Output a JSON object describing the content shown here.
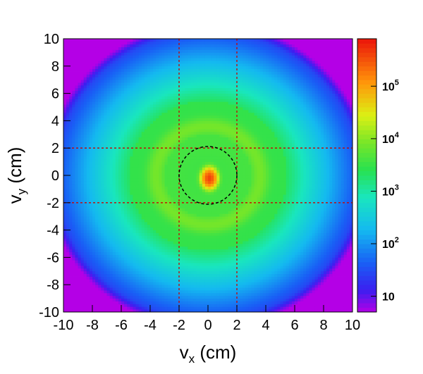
{
  "chart_data": {
    "type": "heatmap",
    "title": "",
    "xlabel": "v",
    "xlabel_sub": "x",
    "xlabel_unit": " (cm)",
    "ylabel": "v",
    "ylabel_sub": "y",
    "ylabel_unit": " (cm)",
    "xlim": [
      -10,
      10
    ],
    "ylim": [
      -10,
      10
    ],
    "x_ticks": [
      "-10",
      "-8",
      "-6",
      "-4",
      "-2",
      "0",
      "2",
      "4",
      "6",
      "8",
      "10"
    ],
    "y_ticks": [
      "-10",
      "-8",
      "-6",
      "-4",
      "-2",
      "0",
      "2",
      "4",
      "6",
      "8",
      "10"
    ],
    "x_tick_values": [
      -10,
      -8,
      -6,
      -4,
      -2,
      0,
      2,
      4,
      6,
      8,
      10
    ],
    "y_tick_values": [
      -10,
      -8,
      -6,
      -4,
      -2,
      0,
      2,
      4,
      6,
      8,
      10
    ],
    "colorbar": {
      "scale": "log",
      "range": [
        5,
        800000
      ],
      "ticks": [
        {
          "value": 10,
          "base": "10",
          "exp": ""
        },
        {
          "value": 100,
          "base": "10",
          "exp": "2"
        },
        {
          "value": 1000,
          "base": "10",
          "exp": "3"
        },
        {
          "value": 10000,
          "base": "10",
          "exp": "4"
        },
        {
          "value": 100000,
          "base": "10",
          "exp": "5"
        }
      ]
    },
    "intensity_model": {
      "description": "radially symmetric distribution: diffuse disk with ring near r≈3.6 cm and sharp central peak",
      "central_peak": {
        "x": 0.1,
        "y": -0.2,
        "max_counts": 400000
      },
      "ring": {
        "radius": 3.6,
        "counts": 8000
      },
      "inner_disk_counts": 4000,
      "outer_edge_radius": 10.5
    },
    "reference_lines": {
      "vertical_x": [
        -2,
        2
      ],
      "horizontal_y": [
        -2,
        2
      ],
      "style": "dotted",
      "color": "#cc0000"
    },
    "reference_circle": {
      "center": [
        0,
        0
      ],
      "radius": 2,
      "style": "dashed",
      "color": "#000000"
    },
    "grid": false
  }
}
